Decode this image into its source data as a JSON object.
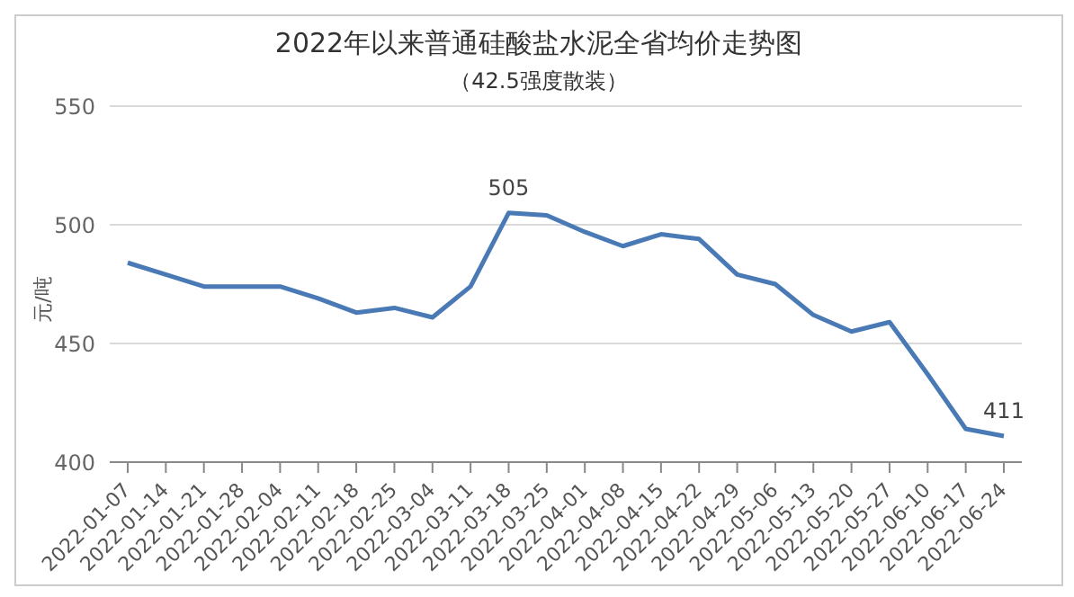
{
  "chart_data": {
    "type": "line",
    "title": "2022年以来普通硅酸盐水泥全省均价走势图",
    "subtitle": "（42.5强度散装）",
    "ylabel": "元/吨",
    "categories": [
      "2022-01-07",
      "2022-01-14",
      "2022-01-21",
      "2022-01-28",
      "2022-02-04",
      "2022-02-11",
      "2022-02-18",
      "2022-02-25",
      "2022-03-04",
      "2022-03-11",
      "2022-03-18",
      "2022-03-25",
      "2022-04-01",
      "2022-04-08",
      "2022-04-15",
      "2022-04-22",
      "2022-04-29",
      "2022-05-06",
      "2022-05-13",
      "2022-05-20",
      "2022-05-27",
      "2022-06-10",
      "2022-06-17",
      "2022-06-24"
    ],
    "series": [
      {
        "color": "#4a7ab5",
        "values": [
          484,
          479,
          474,
          474,
          474,
          469,
          463,
          465,
          461,
          474,
          505,
          504,
          497,
          491,
          496,
          494,
          479,
          475,
          462,
          455,
          459,
          437,
          414,
          411
        ],
        "value_labels": [
          null,
          null,
          null,
          null,
          null,
          null,
          null,
          null,
          null,
          null,
          "505",
          null,
          null,
          null,
          null,
          null,
          null,
          null,
          null,
          null,
          null,
          null,
          null,
          "411"
        ]
      }
    ],
    "ylim": [
      400,
      550
    ],
    "yticks": [
      400,
      450,
      500,
      550
    ],
    "grid": "y",
    "marker": "none",
    "line_style": "solid"
  }
}
